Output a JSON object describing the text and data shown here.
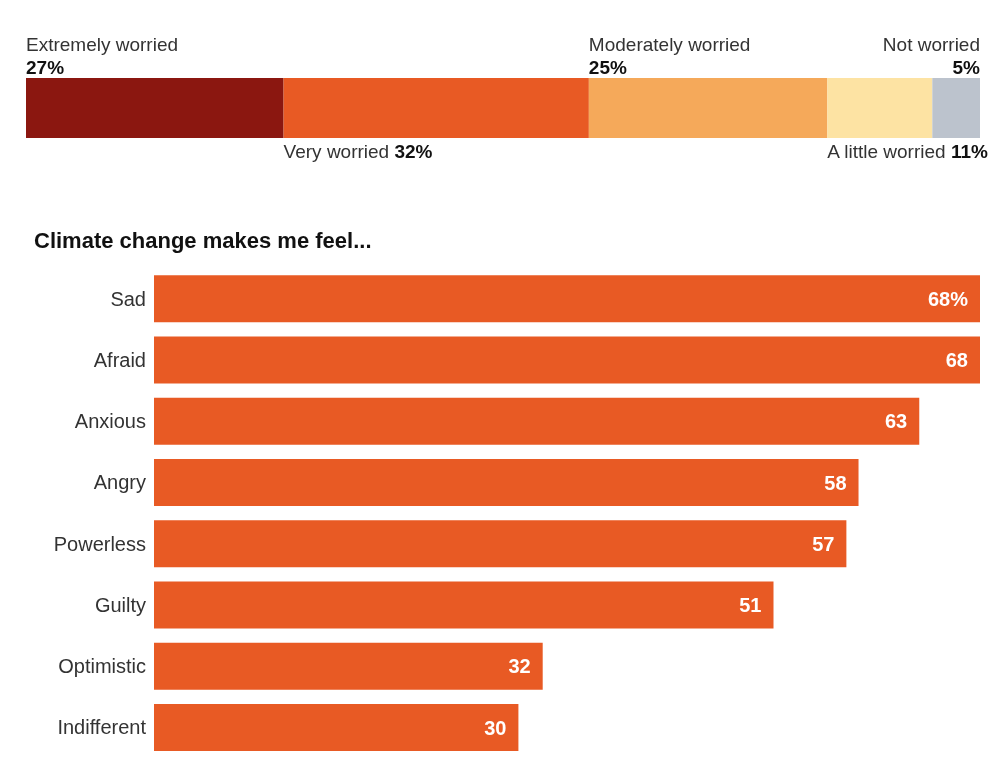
{
  "chart_data": [
    {
      "type": "bar",
      "stacked": true,
      "orientation": "horizontal",
      "categories": [
        null
      ],
      "series": [
        {
          "name": "Extremely worried",
          "color": "#8b1710",
          "values": [
            27
          ],
          "value_labels": [
            "27%"
          ]
        },
        {
          "name": "Very worried",
          "color": "#e85a24",
          "values": [
            32
          ],
          "value_labels": [
            "32%"
          ]
        },
        {
          "name": "Moderately worried",
          "color": "#f5a95a",
          "values": [
            25
          ],
          "value_labels": [
            "25%"
          ]
        },
        {
          "name": "A little worried",
          "color": "#fde3a3",
          "values": [
            11
          ],
          "value_labels": [
            "11%"
          ]
        },
        {
          "name": "Not worried",
          "color": "#bcc3cd",
          "values": [
            5
          ],
          "value_labels": [
            "5%"
          ]
        }
      ]
    },
    {
      "type": "bar",
      "orientation": "horizontal",
      "title": "Climate change makes me feel...",
      "color": "#e85a24",
      "categories": [
        "Sad",
        "Afraid",
        "Anxious",
        "Angry",
        "Powerless",
        "Guilty",
        "Optimistic",
        "Indifferent"
      ],
      "values": [
        68,
        68,
        63,
        58,
        57,
        51,
        32,
        30
      ],
      "value_labels": [
        "68%",
        "68",
        "63",
        "58",
        "57",
        "51",
        "32",
        "30"
      ]
    }
  ]
}
